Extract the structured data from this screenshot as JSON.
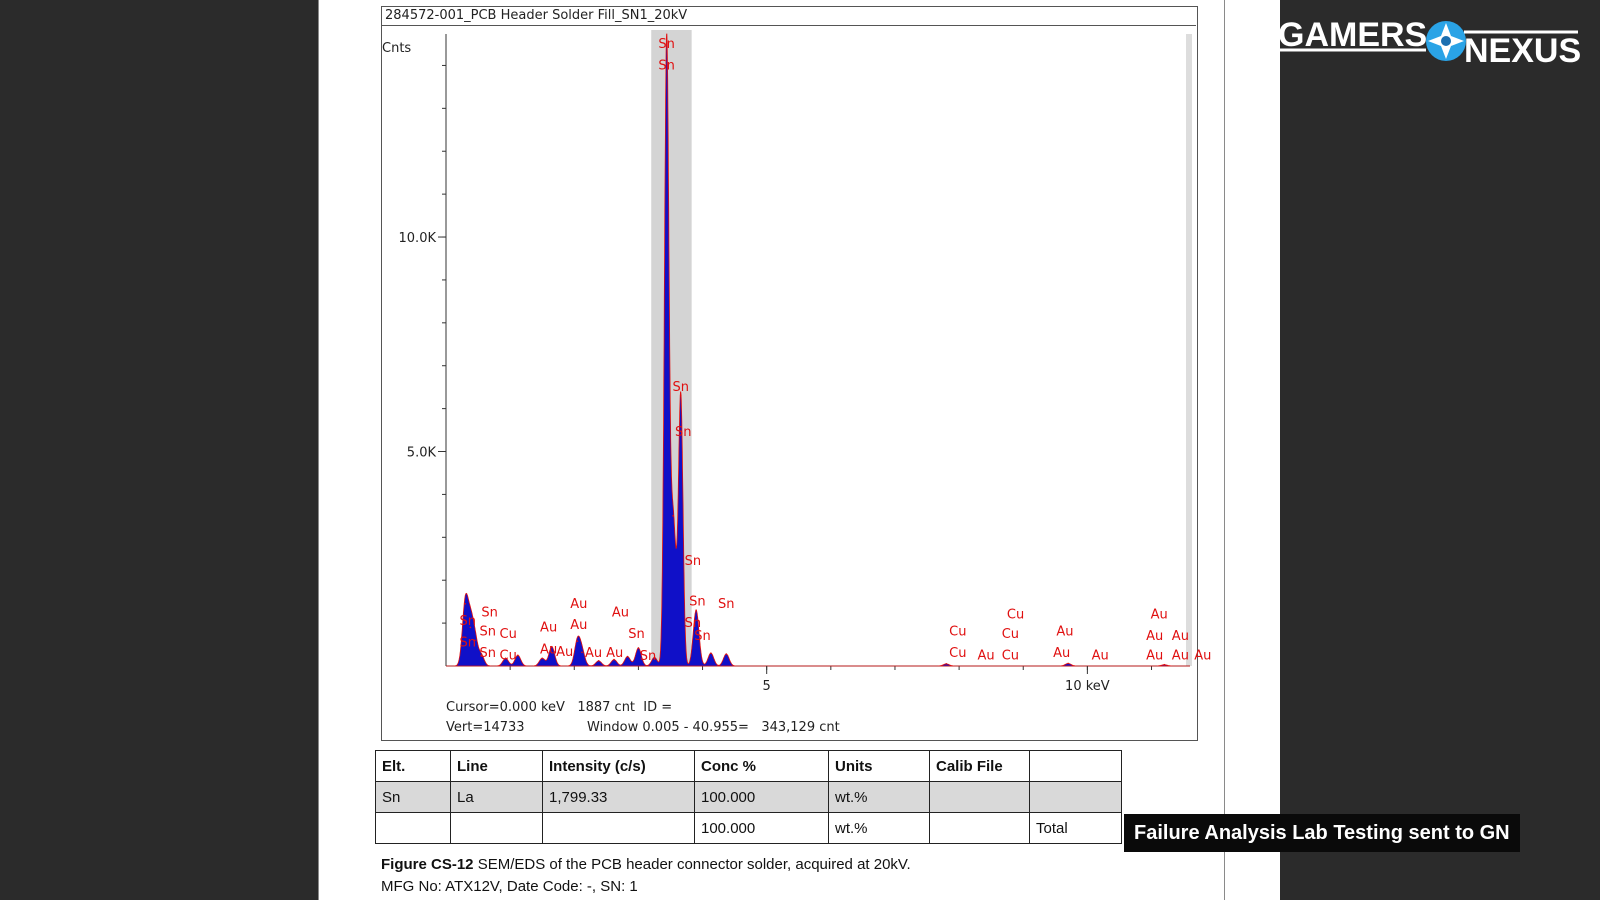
{
  "document": {
    "chart_title": "284572-001_PCB Header Solder Fill_SN1_20kV",
    "readout_line1": "Cursor=0.000 keV   1887 cnt  ID =",
    "readout_line2_left": "Vert=14733",
    "readout_line2_right": "Window 0.005 - 40.955=   343,129 cnt",
    "caption_bold": "Figure CS-12",
    "caption_text": " SEM/EDS of the PCB header connector solder, acquired at 20kV.",
    "caption_line2": "MFG No: ATX12V,  Date Code: -, SN: 1"
  },
  "table": {
    "headers": [
      "Elt.",
      "Line",
      "Intensity (c/s)",
      "Conc %",
      "Units",
      "Calib File",
      ""
    ],
    "rows": [
      [
        "Sn",
        "La",
        "1,799.33",
        "100.000",
        "wt.%",
        "",
        ""
      ],
      [
        "",
        "",
        "",
        "100.000",
        "wt.%",
        "",
        "Total"
      ]
    ]
  },
  "overlay": {
    "logo_text_left": "GAMERS",
    "logo_text_right": "NEXUS",
    "lower_third": "Failure Analysis Lab Testing sent to GN"
  },
  "colors": {
    "spectrum_fill": "#1010c8",
    "spectrum_line": "#e01010",
    "label_color": "#e01010",
    "roi_band": "#d4d4d4",
    "logo_blue": "#2aa3e6"
  },
  "chart_data": {
    "type": "area",
    "title": "284572-001_PCB Header Solder Fill_SN1_20kV",
    "ylabel": "Cnts",
    "xunit": "keV",
    "xlim": [
      0,
      11.6
    ],
    "ylim": [
      0,
      14733
    ],
    "y_ticks": [
      {
        "value": 5000,
        "label": "5.0K"
      },
      {
        "value": 10000,
        "label": "10.0K"
      }
    ],
    "x_ticks": [
      {
        "value": 5,
        "label": "5"
      },
      {
        "value": 10,
        "label": "10 keV"
      }
    ],
    "roi_band_keV": [
      3.2,
      3.83
    ],
    "peaks": [
      {
        "x": 0.3,
        "y": 1450
      },
      {
        "x": 0.38,
        "y": 900
      },
      {
        "x": 0.45,
        "y": 600
      },
      {
        "x": 0.55,
        "y": 250
      },
      {
        "x": 0.93,
        "y": 180
      },
      {
        "x": 1.12,
        "y": 250
      },
      {
        "x": 1.5,
        "y": 180
      },
      {
        "x": 1.65,
        "y": 450
      },
      {
        "x": 2.05,
        "y": 580
      },
      {
        "x": 2.12,
        "y": 320
      },
      {
        "x": 2.38,
        "y": 120
      },
      {
        "x": 2.62,
        "y": 150
      },
      {
        "x": 2.83,
        "y": 220
      },
      {
        "x": 3.0,
        "y": 420
      },
      {
        "x": 3.25,
        "y": 200
      },
      {
        "x": 3.44,
        "y": 14500
      },
      {
        "x": 3.54,
        "y": 3500
      },
      {
        "x": 3.66,
        "y": 6300
      },
      {
        "x": 3.9,
        "y": 1300
      },
      {
        "x": 4.13,
        "y": 300
      },
      {
        "x": 4.37,
        "y": 280
      },
      {
        "x": 7.8,
        "y": 50
      },
      {
        "x": 9.7,
        "y": 60
      },
      {
        "x": 11.2,
        "y": 30
      }
    ],
    "peak_labels": [
      {
        "label": "Sn",
        "x": 3.44,
        "y": 14500
      },
      {
        "label": "Sn",
        "x": 3.44,
        "y": 14000
      },
      {
        "label": "Sn",
        "x": 3.66,
        "y": 6500
      },
      {
        "label": "Sn",
        "x": 3.7,
        "y": 5450
      },
      {
        "label": "Sn",
        "x": 3.85,
        "y": 2450
      },
      {
        "label": "Sn",
        "x": 3.92,
        "y": 1500
      },
      {
        "label": "Sn",
        "x": 4.37,
        "y": 1450
      },
      {
        "label": "Sn",
        "x": 3.85,
        "y": 1000
      },
      {
        "label": "Sn",
        "x": 4.0,
        "y": 700
      },
      {
        "label": "Sn",
        "x": 0.34,
        "y": 1050
      },
      {
        "label": "Sn",
        "x": 0.68,
        "y": 1250
      },
      {
        "label": "Sn",
        "x": 0.65,
        "y": 800
      },
      {
        "label": "Sn",
        "x": 0.65,
        "y": 300
      },
      {
        "label": "Sn",
        "x": 0.34,
        "y": 550
      },
      {
        "label": "Sn",
        "x": 2.97,
        "y": 750
      },
      {
        "label": "Sn",
        "x": 3.15,
        "y": 230
      },
      {
        "label": "Cu",
        "x": 0.97,
        "y": 750
      },
      {
        "label": "Cu",
        "x": 0.97,
        "y": 250
      },
      {
        "label": "Cu",
        "x": 7.98,
        "y": 800
      },
      {
        "label": "Cu",
        "x": 7.98,
        "y": 300
      },
      {
        "label": "Cu",
        "x": 8.88,
        "y": 1200
      },
      {
        "label": "Cu",
        "x": 8.8,
        "y": 750
      },
      {
        "label": "Cu",
        "x": 8.8,
        "y": 250
      },
      {
        "label": "Au",
        "x": 1.6,
        "y": 900
      },
      {
        "label": "Au",
        "x": 2.07,
        "y": 1450
      },
      {
        "label": "Au",
        "x": 2.07,
        "y": 950
      },
      {
        "label": "Au",
        "x": 1.6,
        "y": 380
      },
      {
        "label": "Au",
        "x": 1.85,
        "y": 330
      },
      {
        "label": "Au",
        "x": 2.3,
        "y": 300
      },
      {
        "label": "Au",
        "x": 2.63,
        "y": 300
      },
      {
        "label": "Au",
        "x": 2.72,
        "y": 1250
      },
      {
        "label": "Au",
        "x": 8.42,
        "y": 250
      },
      {
        "label": "Au",
        "x": 9.65,
        "y": 800
      },
      {
        "label": "Au",
        "x": 9.6,
        "y": 300
      },
      {
        "label": "Au",
        "x": 10.2,
        "y": 250
      },
      {
        "label": "Au",
        "x": 11.12,
        "y": 1200
      },
      {
        "label": "Au",
        "x": 11.05,
        "y": 700
      },
      {
        "label": "Au",
        "x": 11.45,
        "y": 700
      },
      {
        "label": "Au",
        "x": 11.05,
        "y": 250
      },
      {
        "label": "Au",
        "x": 11.45,
        "y": 250
      },
      {
        "label": "Au",
        "x": 11.8,
        "y": 250
      }
    ]
  }
}
